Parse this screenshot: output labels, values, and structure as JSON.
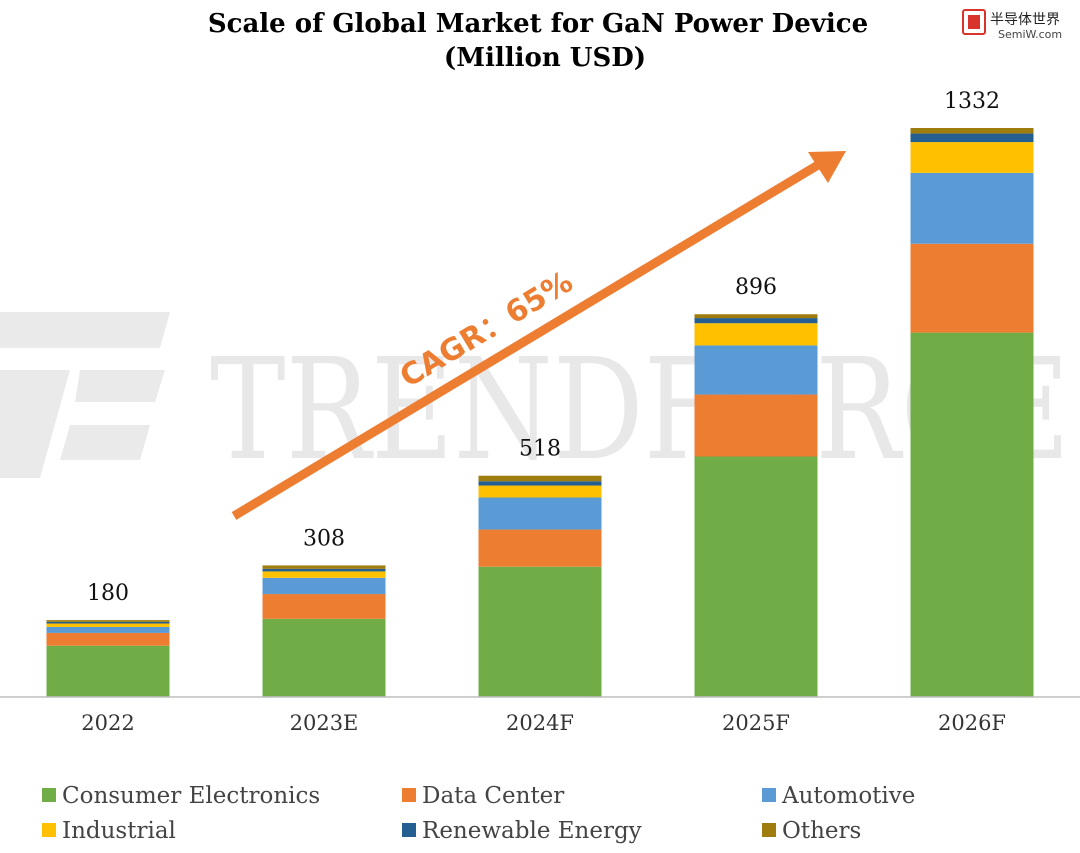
{
  "watermark": {
    "text": "TRENDFORCE"
  },
  "logo": {
    "line1": "半导体世界",
    "line2": "SemiW.com",
    "icon": "chip-icon"
  },
  "chart_data": {
    "type": "bar",
    "stacked": true,
    "title": [
      "Scale of Global Market for GaN Power Device",
      "(Million USD)"
    ],
    "categories": [
      "2022",
      "2023E",
      "2024F",
      "2025F",
      "2026F"
    ],
    "totals": [
      180,
      308,
      518,
      896,
      1332
    ],
    "ylim": [
      0,
      1332
    ],
    "grid": false,
    "legend_position": "bottom",
    "series": [
      {
        "name": "Consumer Electronics",
        "color": "#70AD47",
        "values": [
          120,
          183,
          305,
          563,
          853
        ]
      },
      {
        "name": "Data Center",
        "color": "#ED7D31",
        "values": [
          30,
          58,
          87,
          145,
          208
        ]
      },
      {
        "name": "Automotive",
        "color": "#5B9BD5",
        "values": [
          14,
          38,
          75,
          115,
          166
        ]
      },
      {
        "name": "Industrial",
        "color": "#FFC000",
        "values": [
          8,
          15,
          28,
          52,
          72
        ]
      },
      {
        "name": "Renewable Energy",
        "color": "#255E91",
        "values": [
          4,
          6,
          10,
          12,
          20
        ]
      },
      {
        "name": "Others",
        "color": "#9E7C0E",
        "values": [
          4,
          8,
          13,
          9,
          13
        ]
      }
    ],
    "annotation": {
      "text": "CAGR：65%",
      "color": "#ED7D31"
    }
  }
}
